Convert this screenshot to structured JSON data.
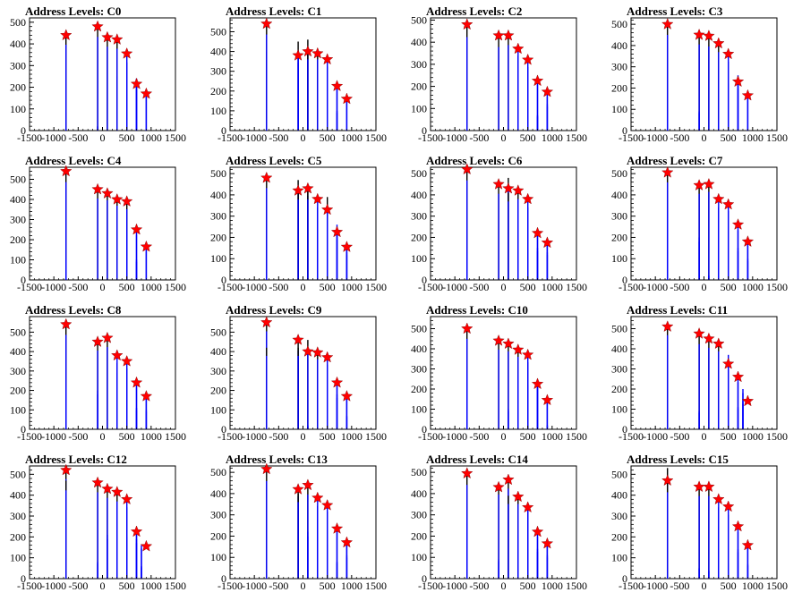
{
  "layout_grid": {
    "rows": 4,
    "cols": 4
  },
  "colors": {
    "histogram": "#0000ff",
    "outline": "#000000",
    "marker": "#ff0000",
    "axis": "#000000"
  },
  "axes": {
    "xlim": [
      -1500,
      1500
    ],
    "xticks": [
      -1500,
      -1000,
      -500,
      0,
      500,
      1000,
      1500
    ],
    "xtick_labels": [
      "-1500",
      "-1000",
      "-500",
      "0",
      "500",
      "1000",
      "1500"
    ],
    "marker_x": [
      -750,
      -100,
      100,
      300,
      500,
      700,
      900
    ]
  },
  "chart_data": [
    {
      "type": "bar",
      "title": "Address Levels: C0",
      "ylim": [
        0,
        520
      ],
      "yticks": [
        0,
        100,
        200,
        300,
        400,
        500
      ],
      "bars": [
        {
          "x": -750,
          "y": 80
        },
        {
          "x": -750,
          "y": 440
        },
        {
          "x": -100,
          "y": 20
        },
        {
          "x": -100,
          "y": 480
        },
        {
          "x": 100,
          "y": 430
        },
        {
          "x": 300,
          "y": 250
        },
        {
          "x": 300,
          "y": 420
        },
        {
          "x": 500,
          "y": 350
        },
        {
          "x": 700,
          "y": 240
        },
        {
          "x": 700,
          "y": 210
        },
        {
          "x": 900,
          "y": 170
        }
      ],
      "markers": [
        440,
        480,
        430,
        420,
        355,
        215,
        170
      ]
    },
    {
      "type": "bar",
      "title": "Address Levels: C1",
      "ylim": [
        0,
        570
      ],
      "yticks": [
        0,
        100,
        200,
        300,
        400,
        500
      ],
      "bars": [
        {
          "x": -750,
          "y": 400
        },
        {
          "x": -750,
          "y": 540
        },
        {
          "x": -100,
          "y": 450
        },
        {
          "x": -100,
          "y": 380
        },
        {
          "x": 100,
          "y": 460
        },
        {
          "x": 100,
          "y": 400
        },
        {
          "x": 300,
          "y": 400
        },
        {
          "x": 500,
          "y": 360
        },
        {
          "x": 700,
          "y": 230
        },
        {
          "x": 700,
          "y": 100
        },
        {
          "x": 900,
          "y": 155
        }
      ],
      "markers": [
        540,
        380,
        400,
        390,
        360,
        225,
        160
      ]
    },
    {
      "type": "bar",
      "title": "Address Levels: C2",
      "ylim": [
        0,
        510
      ],
      "yticks": [
        0,
        100,
        200,
        300,
        400,
        500
      ],
      "bars": [
        {
          "x": -750,
          "y": 470
        },
        {
          "x": -100,
          "y": 420
        },
        {
          "x": 100,
          "y": 430
        },
        {
          "x": 300,
          "y": 370
        },
        {
          "x": 300,
          "y": 340
        },
        {
          "x": 500,
          "y": 320
        },
        {
          "x": 700,
          "y": 230
        },
        {
          "x": 700,
          "y": 70
        },
        {
          "x": 900,
          "y": 170
        },
        {
          "x": 900,
          "y": 120
        }
      ],
      "markers": [
        480,
        430,
        430,
        370,
        320,
        225,
        175
      ]
    },
    {
      "type": "bar",
      "title": "Address Levels: C3",
      "ylim": [
        0,
        530
      ],
      "yticks": [
        0,
        100,
        200,
        300,
        400,
        500
      ],
      "bars": [
        {
          "x": -750,
          "y": 500
        },
        {
          "x": -750,
          "y": 70
        },
        {
          "x": -100,
          "y": 450
        },
        {
          "x": -100,
          "y": 90
        },
        {
          "x": 100,
          "y": 440
        },
        {
          "x": 300,
          "y": 410
        },
        {
          "x": 300,
          "y": 40
        },
        {
          "x": 500,
          "y": 360
        },
        {
          "x": 500,
          "y": 220
        },
        {
          "x": 700,
          "y": 260
        },
        {
          "x": 700,
          "y": 220
        },
        {
          "x": 900,
          "y": 160
        }
      ],
      "markers": [
        500,
        450,
        445,
        410,
        360,
        230,
        165
      ]
    },
    {
      "type": "bar",
      "title": "Address Levels: C4",
      "ylim": [
        0,
        560
      ],
      "yticks": [
        0,
        100,
        200,
        300,
        400,
        500
      ],
      "bars": [
        {
          "x": -750,
          "y": 540
        },
        {
          "x": -750,
          "y": 110
        },
        {
          "x": -100,
          "y": 450
        },
        {
          "x": 100,
          "y": 440
        },
        {
          "x": 300,
          "y": 410
        },
        {
          "x": 500,
          "y": 390
        },
        {
          "x": 500,
          "y": 240
        },
        {
          "x": 700,
          "y": 250
        },
        {
          "x": 700,
          "y": 100
        },
        {
          "x": 900,
          "y": 160
        }
      ],
      "markers": [
        540,
        450,
        430,
        400,
        390,
        250,
        165
      ]
    },
    {
      "type": "bar",
      "title": "Address Levels: C5",
      "ylim": [
        0,
        530
      ],
      "yticks": [
        0,
        100,
        200,
        300,
        400,
        500
      ],
      "bars": [
        {
          "x": -750,
          "y": 480
        },
        {
          "x": -750,
          "y": 20
        },
        {
          "x": -100,
          "y": 470
        },
        {
          "x": -100,
          "y": 420
        },
        {
          "x": 100,
          "y": 440
        },
        {
          "x": 100,
          "y": 420
        },
        {
          "x": 300,
          "y": 380
        },
        {
          "x": 500,
          "y": 390
        },
        {
          "x": 500,
          "y": 280
        },
        {
          "x": 700,
          "y": 260
        },
        {
          "x": 700,
          "y": 210
        },
        {
          "x": 900,
          "y": 170
        },
        {
          "x": 900,
          "y": 130
        }
      ],
      "markers": [
        480,
        420,
        430,
        380,
        330,
        225,
        155
      ]
    },
    {
      "type": "bar",
      "title": "Address Levels: C6",
      "ylim": [
        0,
        530
      ],
      "yticks": [
        0,
        100,
        200,
        300,
        400,
        500
      ],
      "bars": [
        {
          "x": -750,
          "y": 520
        },
        {
          "x": -750,
          "y": 130
        },
        {
          "x": -100,
          "y": 450
        },
        {
          "x": 100,
          "y": 480
        },
        {
          "x": 100,
          "y": 410
        },
        {
          "x": 300,
          "y": 420
        },
        {
          "x": 300,
          "y": 380
        },
        {
          "x": 500,
          "y": 380
        },
        {
          "x": 700,
          "y": 230
        },
        {
          "x": 700,
          "y": 150
        },
        {
          "x": 900,
          "y": 180
        },
        {
          "x": 900,
          "y": 130
        }
      ],
      "markers": [
        520,
        450,
        430,
        420,
        380,
        220,
        175
      ]
    },
    {
      "type": "bar",
      "title": "Address Levels: C7",
      "ylim": [
        0,
        530
      ],
      "yticks": [
        0,
        100,
        200,
        300,
        400,
        500
      ],
      "bars": [
        {
          "x": -750,
          "y": 510
        },
        {
          "x": -750,
          "y": 320
        },
        {
          "x": -100,
          "y": 450
        },
        {
          "x": -100,
          "y": 200
        },
        {
          "x": 100,
          "y": 460
        },
        {
          "x": 100,
          "y": 20
        },
        {
          "x": 300,
          "y": 380
        },
        {
          "x": 500,
          "y": 360
        },
        {
          "x": 700,
          "y": 260
        },
        {
          "x": 700,
          "y": 150
        },
        {
          "x": 900,
          "y": 180
        },
        {
          "x": 900,
          "y": 100
        }
      ],
      "markers": [
        505,
        445,
        450,
        380,
        355,
        260,
        180
      ]
    },
    {
      "type": "bar",
      "title": "Address Levels: C8",
      "ylim": [
        0,
        580
      ],
      "yticks": [
        0,
        100,
        200,
        300,
        400,
        500
      ],
      "bars": [
        {
          "x": -750,
          "y": 540
        },
        {
          "x": -750,
          "y": 220
        },
        {
          "x": -100,
          "y": 450
        },
        {
          "x": -100,
          "y": 200
        },
        {
          "x": 100,
          "y": 470
        },
        {
          "x": 300,
          "y": 380
        },
        {
          "x": 300,
          "y": 290
        },
        {
          "x": 500,
          "y": 350
        },
        {
          "x": 700,
          "y": 240
        },
        {
          "x": 700,
          "y": 110
        },
        {
          "x": 900,
          "y": 170
        },
        {
          "x": 900,
          "y": 100
        }
      ],
      "markers": [
        540,
        450,
        470,
        380,
        350,
        240,
        170
      ]
    },
    {
      "type": "bar",
      "title": "Address Levels: C9",
      "ylim": [
        0,
        580
      ],
      "yticks": [
        0,
        100,
        200,
        300,
        400,
        500
      ],
      "bars": [
        {
          "x": -750,
          "y": 560
        },
        {
          "x": -750,
          "y": 420
        },
        {
          "x": -100,
          "y": 450
        },
        {
          "x": -100,
          "y": 420
        },
        {
          "x": 100,
          "y": 460
        },
        {
          "x": 100,
          "y": 20
        },
        {
          "x": 300,
          "y": 400
        },
        {
          "x": 500,
          "y": 370
        },
        {
          "x": 700,
          "y": 240
        },
        {
          "x": 700,
          "y": 180
        },
        {
          "x": 900,
          "y": 170
        },
        {
          "x": 900,
          "y": 70
        }
      ],
      "markers": [
        550,
        460,
        400,
        395,
        370,
        240,
        170
      ]
    },
    {
      "type": "bar",
      "title": "Address Levels: C10",
      "ylim": [
        0,
        560
      ],
      "yticks": [
        0,
        100,
        200,
        300,
        400,
        500
      ],
      "bars": [
        {
          "x": -750,
          "y": 500
        },
        {
          "x": -750,
          "y": 280
        },
        {
          "x": -100,
          "y": 440
        },
        {
          "x": 100,
          "y": 430
        },
        {
          "x": 100,
          "y": 100
        },
        {
          "x": 300,
          "y": 400
        },
        {
          "x": 300,
          "y": 270
        },
        {
          "x": 500,
          "y": 370
        },
        {
          "x": 500,
          "y": 220
        },
        {
          "x": 700,
          "y": 230
        },
        {
          "x": 700,
          "y": 220
        },
        {
          "x": 900,
          "y": 150
        },
        {
          "x": 900,
          "y": 20
        }
      ],
      "markers": [
        500,
        440,
        425,
        395,
        370,
        225,
        145
      ]
    },
    {
      "type": "bar",
      "title": "Address Levels: C11",
      "ylim": [
        0,
        560
      ],
      "yticks": [
        0,
        100,
        200,
        300,
        400,
        500
      ],
      "bars": [
        {
          "x": -750,
          "y": 520
        },
        {
          "x": -100,
          "y": 470
        },
        {
          "x": -100,
          "y": 90
        },
        {
          "x": 100,
          "y": 450
        },
        {
          "x": 300,
          "y": 430
        },
        {
          "x": 300,
          "y": 60
        },
        {
          "x": 500,
          "y": 370
        },
        {
          "x": 500,
          "y": 290
        },
        {
          "x": 700,
          "y": 260
        },
        {
          "x": 700,
          "y": 110
        },
        {
          "x": 800,
          "y": 200
        },
        {
          "x": 800,
          "y": 140
        }
      ],
      "markers": [
        510,
        475,
        450,
        425,
        325,
        260,
        140
      ]
    },
    {
      "type": "bar",
      "title": "Address Levels: C12",
      "ylim": [
        0,
        540
      ],
      "yticks": [
        0,
        100,
        200,
        300,
        400,
        500
      ],
      "bars": [
        {
          "x": -750,
          "y": 530
        },
        {
          "x": -750,
          "y": 470
        },
        {
          "x": -100,
          "y": 460
        },
        {
          "x": -100,
          "y": 80
        },
        {
          "x": 100,
          "y": 430
        },
        {
          "x": 100,
          "y": 210
        },
        {
          "x": 300,
          "y": 410
        },
        {
          "x": 300,
          "y": 370
        },
        {
          "x": 500,
          "y": 380
        },
        {
          "x": 500,
          "y": 200
        },
        {
          "x": 700,
          "y": 230
        },
        {
          "x": 700,
          "y": 190
        },
        {
          "x": 800,
          "y": 160
        },
        {
          "x": 800,
          "y": 60
        }
      ],
      "markers": [
        520,
        460,
        430,
        415,
        380,
        225,
        155
      ]
    },
    {
      "type": "bar",
      "title": "Address Levels: C13",
      "ylim": [
        0,
        530
      ],
      "yticks": [
        0,
        100,
        200,
        300,
        400,
        500
      ],
      "bars": [
        {
          "x": -750,
          "y": 510
        },
        {
          "x": -750,
          "y": 10
        },
        {
          "x": -100,
          "y": 430
        },
        {
          "x": -100,
          "y": 400
        },
        {
          "x": 100,
          "y": 440
        },
        {
          "x": 100,
          "y": 220
        },
        {
          "x": 300,
          "y": 380
        },
        {
          "x": 300,
          "y": 280
        },
        {
          "x": 500,
          "y": 350
        },
        {
          "x": 500,
          "y": 160
        },
        {
          "x": 700,
          "y": 240
        },
        {
          "x": 700,
          "y": 80
        },
        {
          "x": 900,
          "y": 170
        },
        {
          "x": 900,
          "y": 110
        }
      ],
      "markers": [
        515,
        420,
        440,
        380,
        345,
        235,
        170
      ]
    },
    {
      "type": "bar",
      "title": "Address Levels: C14",
      "ylim": [
        0,
        530
      ],
      "yticks": [
        0,
        100,
        200,
        300,
        400,
        500
      ],
      "bars": [
        {
          "x": -750,
          "y": 490
        },
        {
          "x": -750,
          "y": 280
        },
        {
          "x": -100,
          "y": 440
        },
        {
          "x": -100,
          "y": 90
        },
        {
          "x": 100,
          "y": 470
        },
        {
          "x": 100,
          "y": 390
        },
        {
          "x": 300,
          "y": 390
        },
        {
          "x": 300,
          "y": 210
        },
        {
          "x": 500,
          "y": 350
        },
        {
          "x": 500,
          "y": 330
        },
        {
          "x": 700,
          "y": 220
        },
        {
          "x": 700,
          "y": 140
        },
        {
          "x": 900,
          "y": 170
        },
        {
          "x": 900,
          "y": 110
        }
      ],
      "markers": [
        495,
        430,
        465,
        385,
        335,
        220,
        165
      ]
    },
    {
      "type": "bar",
      "title": "Address Levels: C15",
      "ylim": [
        0,
        540
      ],
      "yticks": [
        0,
        100,
        200,
        300,
        400,
        500
      ],
      "bars": [
        {
          "x": -750,
          "y": 530
        },
        {
          "x": -750,
          "y": 460
        },
        {
          "x": -100,
          "y": 440
        },
        {
          "x": -100,
          "y": 50
        },
        {
          "x": 100,
          "y": 440
        },
        {
          "x": 100,
          "y": 40
        },
        {
          "x": 300,
          "y": 380
        },
        {
          "x": 300,
          "y": 250
        },
        {
          "x": 500,
          "y": 340
        },
        {
          "x": 500,
          "y": 70
        },
        {
          "x": 700,
          "y": 250
        },
        {
          "x": 700,
          "y": 140
        },
        {
          "x": 900,
          "y": 160
        },
        {
          "x": 900,
          "y": 70
        }
      ],
      "markers": [
        470,
        440,
        440,
        380,
        345,
        250,
        160
      ]
    }
  ]
}
